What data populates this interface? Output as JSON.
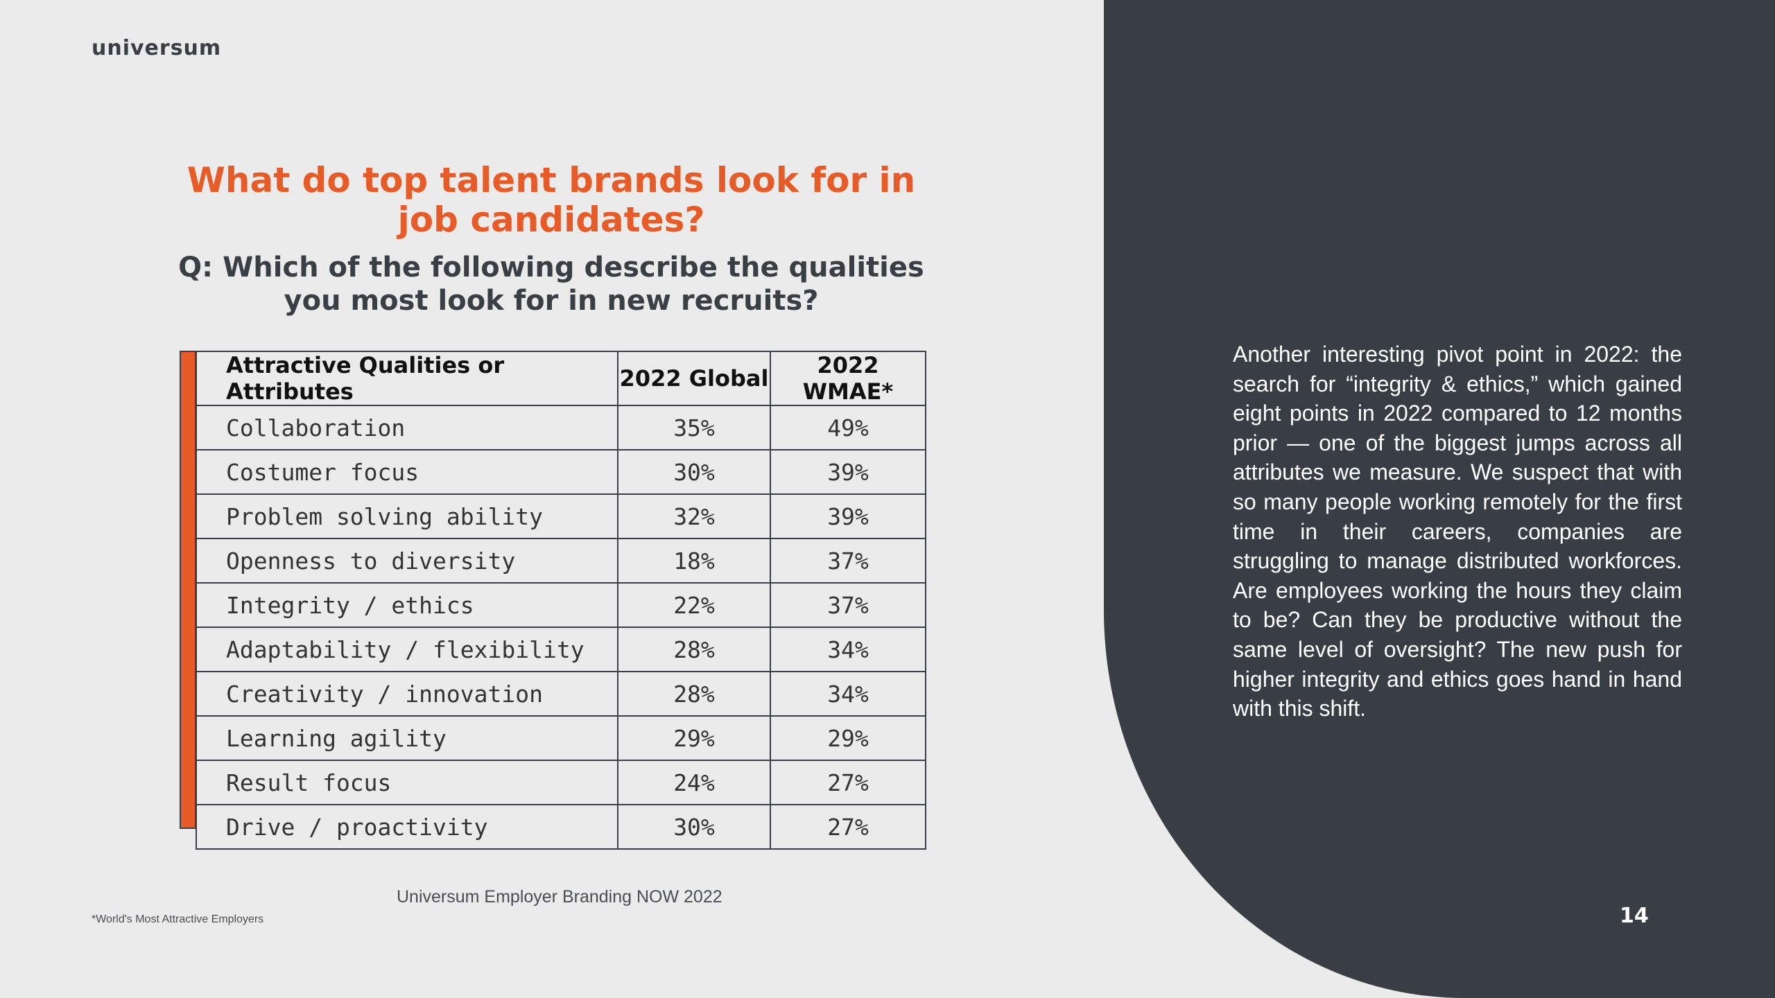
{
  "brand": {
    "logo_text": "universum"
  },
  "heading": {
    "title": "What do top talent brands look for in job candidates?",
    "question": "Q: Which of the following describe the qualities you most look for in new recruits?"
  },
  "table": {
    "headers": [
      "Attractive Qualities or Attributes",
      "2022 Global",
      "2022 WMAE*"
    ],
    "rows": [
      [
        "Collaboration",
        "35%",
        "49%"
      ],
      [
        "Costumer focus",
        "30%",
        "39%"
      ],
      [
        "Problem solving ability",
        "32%",
        "39%"
      ],
      [
        "Openness to diversity",
        "18%",
        "37%"
      ],
      [
        "Integrity / ethics",
        "22%",
        "37%"
      ],
      [
        "Adaptability / flexibility",
        "28%",
        "34%"
      ],
      [
        "Creativity / innovation",
        "28%",
        "34%"
      ],
      [
        "Learning agility",
        "29%",
        "29%"
      ],
      [
        "Result focus",
        "24%",
        "27%"
      ],
      [
        "Drive / proactivity",
        "30%",
        "27%"
      ]
    ]
  },
  "source": "Universum Employer Branding NOW 2022",
  "footnote": "*World's Most Attractive Employers",
  "body_text": "Another interesting pivot point in 2022: the search for “integrity & ethics,” which gained eight points in 2022 compared to 12 months prior — one of the biggest jumps across all attributes we measure. We suspect that with so many people working remotely for the first time in their careers, companies are struggling to manage distributed workforces. Are employees working the hours they claim to be? Can they be productive without the same level of oversight? The new push for higher integrity and ethics goes hand in hand with this shift.",
  "page_number": "14",
  "colors": {
    "accent": "#e85a26",
    "panel": "#393d44",
    "background": "#ebebeb"
  }
}
